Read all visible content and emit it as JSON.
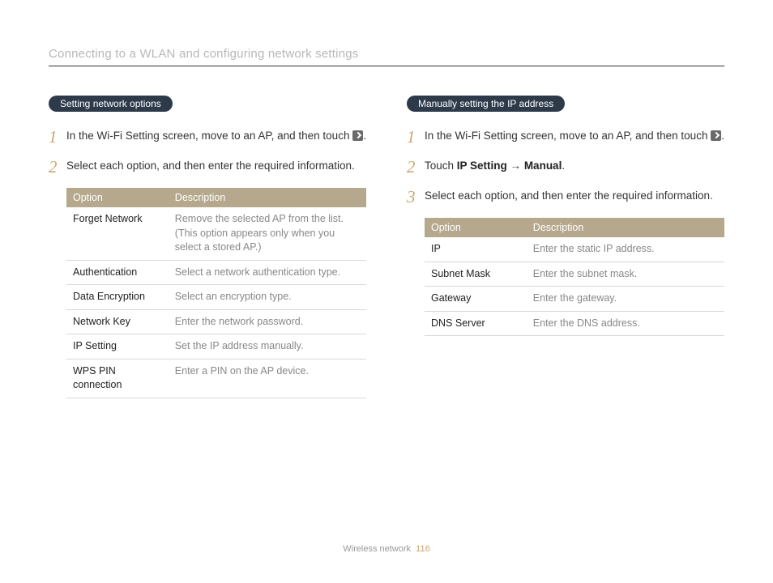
{
  "header": {
    "title": "Connecting to a WLAN and configuring network settings"
  },
  "left": {
    "pill": "Setting network options",
    "steps": [
      {
        "num": "1",
        "text_pre": "In the Wi-Fi Setting screen, move to an AP, and then touch ",
        "text_post": "."
      },
      {
        "num": "2",
        "text_pre": "Select each option, and then enter the required information.",
        "text_post": ""
      }
    ],
    "table": {
      "headers": [
        "Option",
        "Description"
      ],
      "rows": [
        [
          "Forget Network",
          "Remove the selected AP from the list. (This option appears only when you select a stored AP.)"
        ],
        [
          "Authentication",
          "Select a network authentication type."
        ],
        [
          "Data Encryption",
          "Select an encryption type."
        ],
        [
          "Network Key",
          "Enter the network password."
        ],
        [
          "IP Setting",
          "Set the IP address manually."
        ],
        [
          "WPS PIN connection",
          "Enter a PIN on the AP device."
        ]
      ]
    }
  },
  "right": {
    "pill": "Manually setting the IP address",
    "steps": [
      {
        "num": "1",
        "text_pre": "In the Wi-Fi Setting screen, move to an AP, and then touch ",
        "text_post": "."
      },
      {
        "num": "2",
        "composite": true,
        "t1": "Touch ",
        "b1": "IP Setting",
        "arrow": " → ",
        "b2": "Manual",
        "t2": "."
      },
      {
        "num": "3",
        "text_pre": "Select each option, and then enter the required information.",
        "text_post": ""
      }
    ],
    "table": {
      "headers": [
        "Option",
        "Description"
      ],
      "rows": [
        [
          "IP",
          "Enter the static IP address."
        ],
        [
          "Subnet Mask",
          "Enter the subnet mask."
        ],
        [
          "Gateway",
          "Enter the gateway."
        ],
        [
          "DNS Server",
          "Enter the DNS address."
        ]
      ]
    }
  },
  "footer": {
    "section": "Wireless network",
    "page": "116"
  },
  "colors": {
    "pill_bg": "#2d3a4a",
    "accent": "#c9a96e",
    "table_header_bg": "#b5a88c",
    "desc_text": "#888888",
    "header_text": "#b8b8b8"
  }
}
